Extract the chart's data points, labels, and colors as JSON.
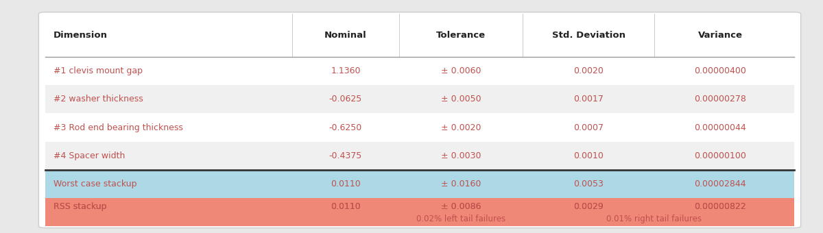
{
  "headers": [
    "Dimension",
    "Nominal",
    "Tolerance",
    "Std. Deviation",
    "Variance"
  ],
  "rows": [
    [
      "#1 clevis mount gap",
      "1.1360",
      "± 0.0060",
      "0.0020",
      "0.00000400"
    ],
    [
      "#2 washer thickness",
      "-0.0625",
      "± 0.0050",
      "0.0017",
      "0.00000278"
    ],
    [
      "#3 Rod end bearing thickness",
      "-0.6250",
      "± 0.0020",
      "0.0007",
      "0.00000044"
    ],
    [
      "#4 Spacer width",
      "-0.4375",
      "± 0.0030",
      "0.0010",
      "0.00000100"
    ],
    [
      "Worst case stackup",
      "0.0110",
      "± 0.0160",
      "0.0053",
      "0.00002844"
    ],
    [
      "RSS stackup",
      "0.0110",
      "± 0.0086",
      "0.0029",
      "0.00000822"
    ]
  ],
  "footer_left": "0.02% left tail failures",
  "footer_right": "0.01% right tail failures",
  "row_colors": [
    "#ffffff",
    "#f0f0f0",
    "#ffffff",
    "#f0f0f0",
    "#add8e6",
    "#f08878"
  ],
  "header_text_color": "#222222",
  "data_text_color": "#c0504d",
  "bg_color": "#e8e8e8",
  "card_color": "#ffffff",
  "separator_color": "#999999",
  "thick_separator_color": "#333333"
}
